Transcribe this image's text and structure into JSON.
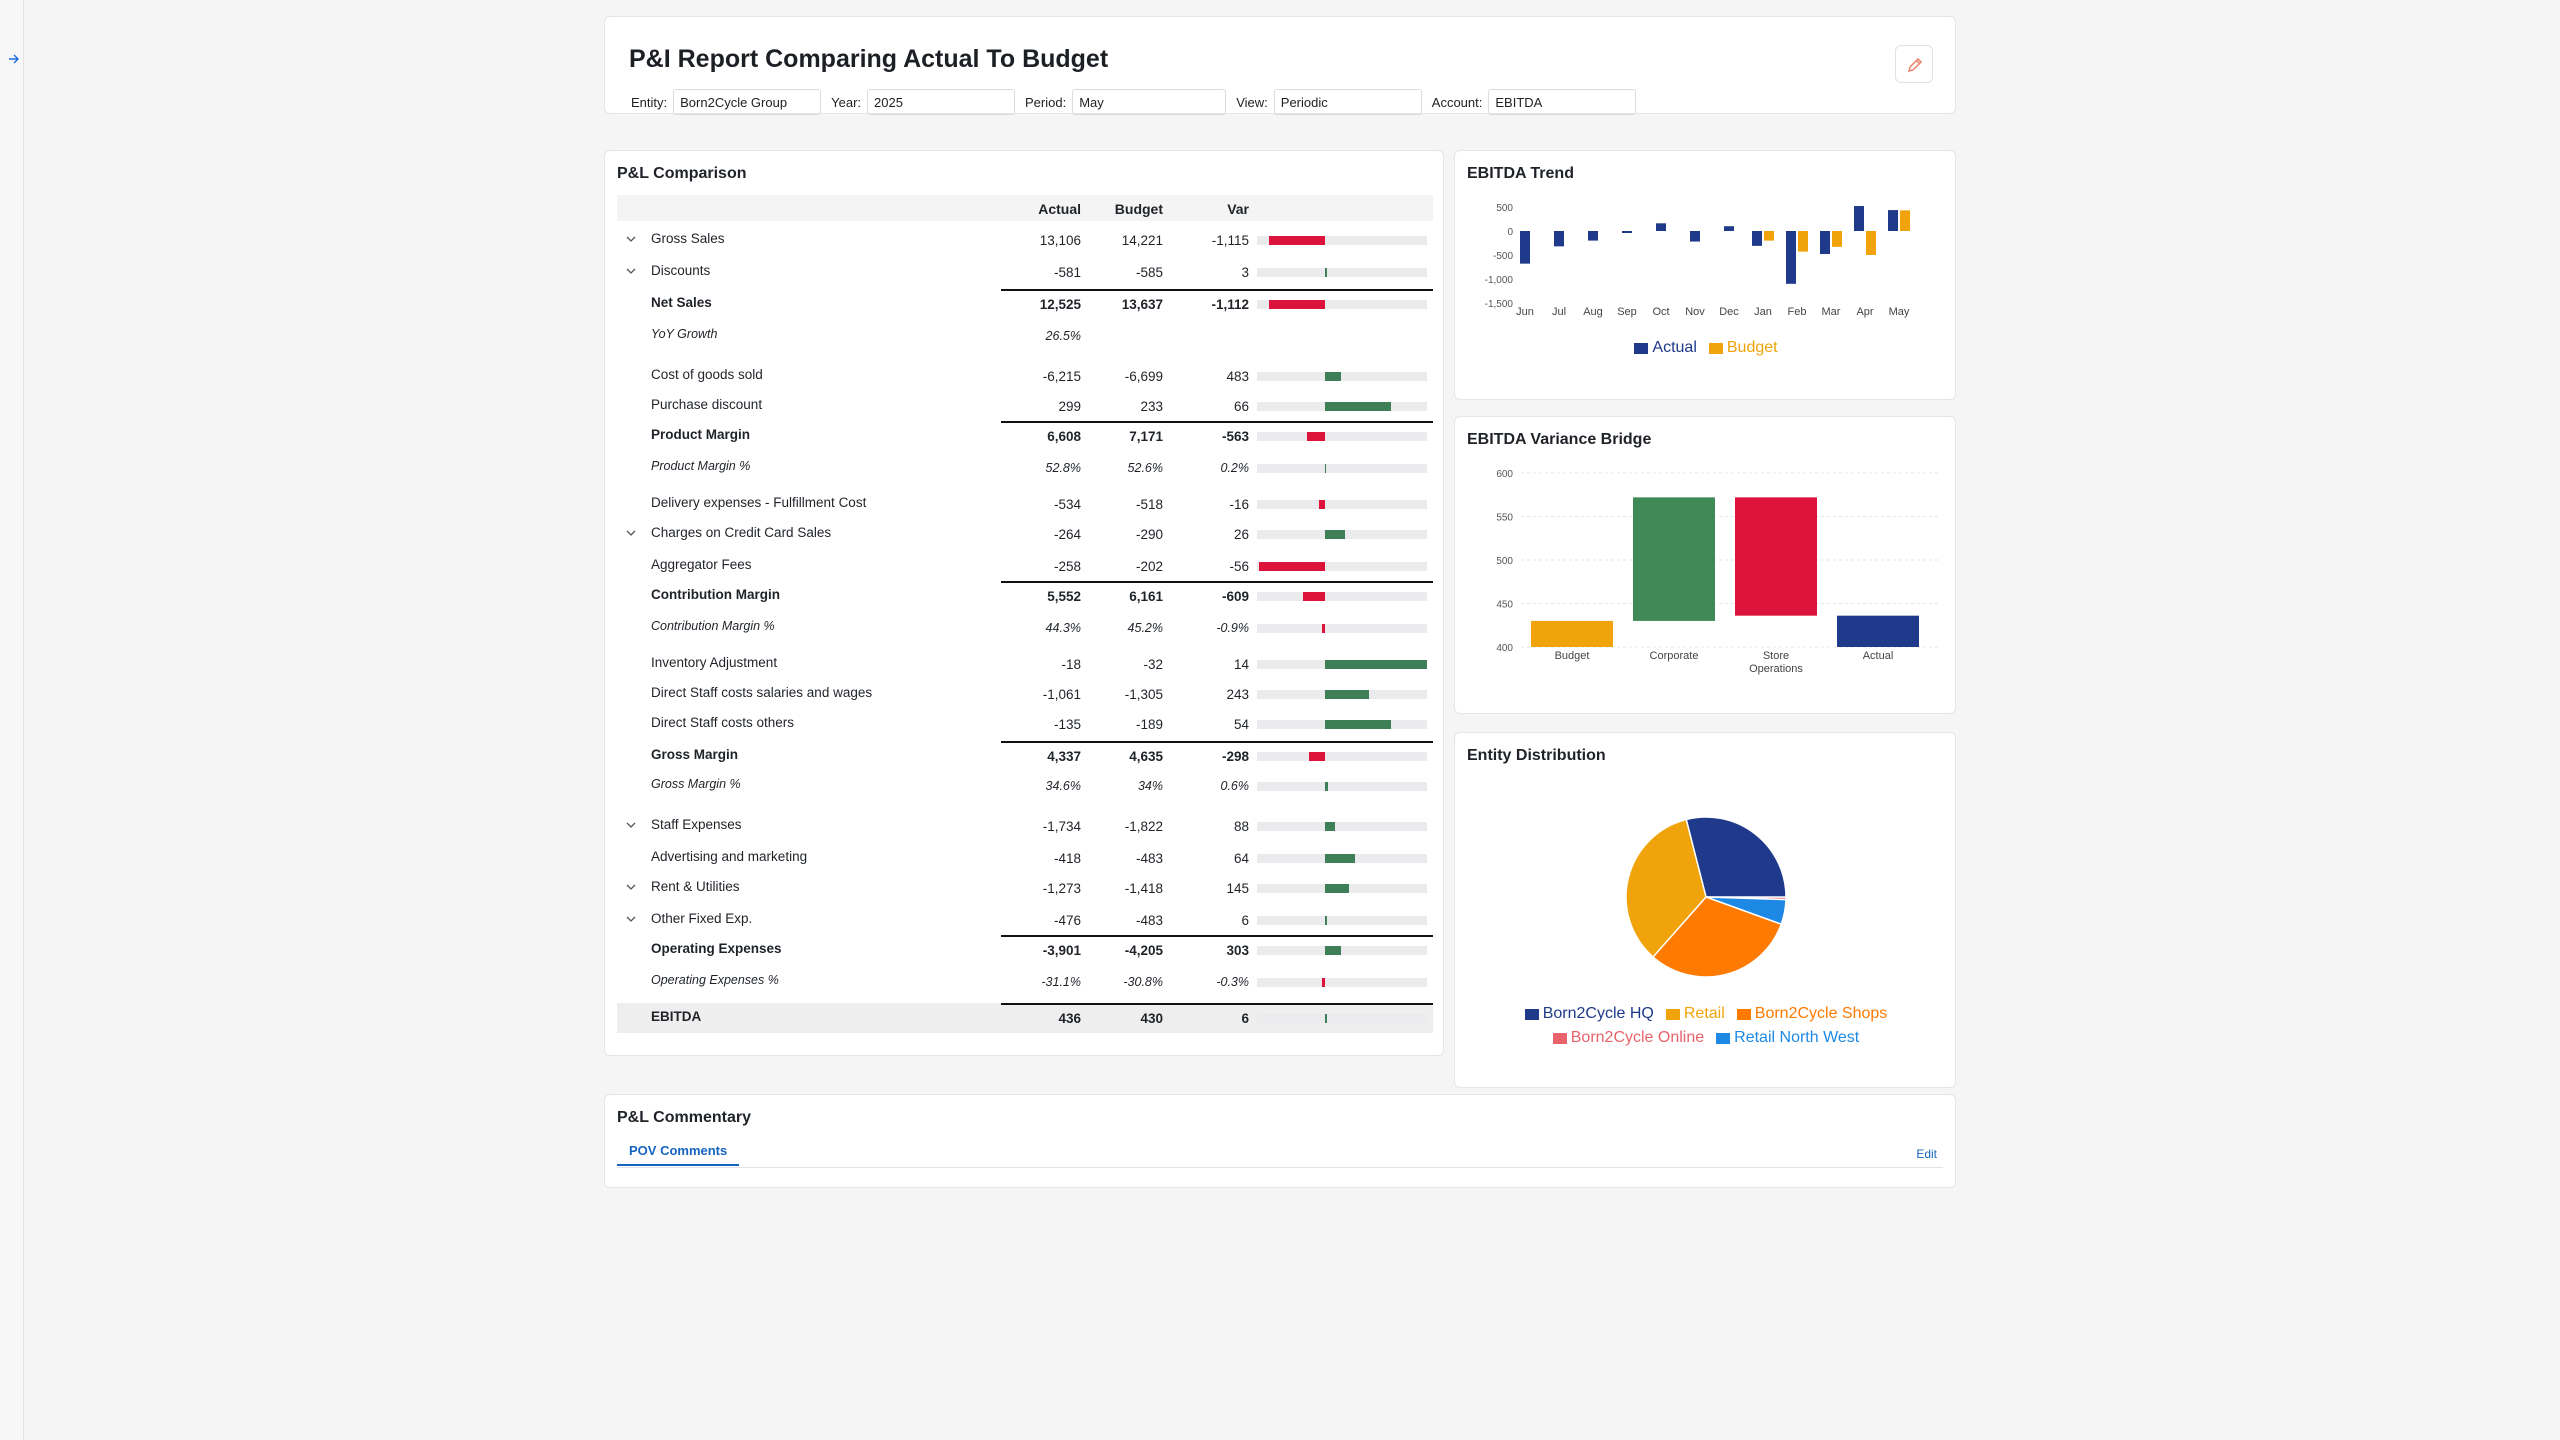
{
  "header": {
    "title": "P&I Report Comparing Actual To Budget",
    "filters": [
      {
        "label": "Entity:",
        "value": "Born2Cycle Group"
      },
      {
        "label": "Year:",
        "value": "2025"
      },
      {
        "label": "Period:",
        "value": "May"
      },
      {
        "label": "View:",
        "value": "Periodic"
      },
      {
        "label": "Account:",
        "value": "EBITDA"
      }
    ]
  },
  "pl": {
    "title": "P&L Comparison",
    "columns": {
      "actual": "Actual",
      "budget": "Budget",
      "var": "Var"
    },
    "rows": [
      {
        "name": "Gross Sales",
        "actual": "13,106",
        "budget": "14,221",
        "var": "-1,115",
        "v": -1115,
        "style": "normal",
        "chev": true
      },
      {
        "name": "Discounts",
        "actual": "-581",
        "budget": "-585",
        "var": "3",
        "v": 3,
        "style": "normal",
        "chev": true
      },
      {
        "name": "Net Sales",
        "actual": "12,525",
        "budget": "13,637",
        "var": "-1,112",
        "v": -1112,
        "style": "bold",
        "topline": true
      },
      {
        "name": "YoY Growth",
        "actual": "26.5%",
        "budget": "",
        "var": "",
        "v": null,
        "style": "italic"
      },
      {
        "name": "Cost of goods sold",
        "actual": "-6,215",
        "budget": "-6,699",
        "var": "483",
        "v": 483,
        "style": "normal"
      },
      {
        "name": "Purchase discount",
        "actual": "299",
        "budget": "233",
        "var": "66",
        "v": 66,
        "style": "normal",
        "scale": 400
      },
      {
        "name": "Product Margin",
        "actual": "6,608",
        "budget": "7,171",
        "var": "-563",
        "v": -563,
        "style": "bold",
        "topline": true
      },
      {
        "name": "Product Margin %",
        "actual": "52.8%",
        "budget": "52.6%",
        "var": "0.2%",
        "v": 0,
        "style": "italic"
      },
      {
        "name": "Delivery expenses - Fulfillment Cost",
        "actual": "-534",
        "budget": "-518",
        "var": "-16",
        "v": -16,
        "style": "normal"
      },
      {
        "name": "Charges on Credit Card Sales",
        "actual": "-264",
        "budget": "-290",
        "var": "26",
        "v": 26,
        "style": "normal",
        "chev": true
      },
      {
        "name": "Aggregator Fees",
        "actual": "-258",
        "budget": "-202",
        "var": "-56",
        "v": -56,
        "style": "normal"
      },
      {
        "name": "Contribution Margin",
        "actual": "5,552",
        "budget": "6,161",
        "var": "-609",
        "v": -609,
        "style": "bold",
        "topline": true
      },
      {
        "name": "Contribution Margin %",
        "actual": "44.3%",
        "budget": "45.2%",
        "var": "-0.9%",
        "v": -1,
        "style": "italic"
      },
      {
        "name": "Inventory Adjustment",
        "actual": "-18",
        "budget": "-32",
        "var": "14",
        "v": 14,
        "style": "normal"
      },
      {
        "name": "Direct Staff costs salaries and wages",
        "actual": "-1,061",
        "budget": "-1,305",
        "var": "243",
        "v": 243,
        "style": "normal"
      },
      {
        "name": "Direct Staff costs others",
        "actual": "-135",
        "budget": "-189",
        "var": "54",
        "v": 54,
        "style": "normal"
      },
      {
        "name": "Gross Margin",
        "actual": "4,337",
        "budget": "4,635",
        "var": "-298",
        "v": -298,
        "style": "bold",
        "topline": true
      },
      {
        "name": "Gross Margin %",
        "actual": "34.6%",
        "budget": "34%",
        "var": "0.6%",
        "v": 1,
        "style": "italic"
      },
      {
        "name": "Staff Expenses",
        "actual": "-1,734",
        "budget": "-1,822",
        "var": "88",
        "v": 88,
        "style": "normal",
        "chev": true
      },
      {
        "name": "Advertising and marketing",
        "actual": "-418",
        "budget": "-483",
        "var": "64",
        "v": 64,
        "style": "normal"
      },
      {
        "name": "Rent & Utilities",
        "actual": "-1,273",
        "budget": "-1,418",
        "var": "145",
        "v": 145,
        "style": "normal",
        "chev": true
      },
      {
        "name": "Other Fixed Exp.",
        "actual": "-476",
        "budget": "-483",
        "var": "6",
        "v": 6,
        "style": "normal",
        "chev": true
      },
      {
        "name": "Operating Expenses",
        "actual": "-3,901",
        "budget": "-4,205",
        "var": "303",
        "v": 303,
        "style": "bold",
        "topline": true
      },
      {
        "name": "Operating Expenses %",
        "actual": "-31.1%",
        "budget": "-30.8%",
        "var": "-0.3%",
        "v": -1,
        "style": "italic"
      },
      {
        "name": "EBITDA",
        "actual": "436",
        "budget": "430",
        "var": "6",
        "v": 6,
        "style": "total",
        "topline": true
      }
    ]
  },
  "charts": {
    "trend_title": "EBITDA Trend",
    "bridge_title": "EBITDA Variance Bridge",
    "dist_title": "Entity Distribution"
  },
  "colors": {
    "actual": "#1f3a8a",
    "budget": "#f0a30a",
    "positive": "#3f7f57",
    "negative": "#dc143c",
    "bridge_positive": "#3f8a57"
  },
  "chart_data": [
    {
      "type": "bar",
      "title": "EBITDA Trend",
      "categories": [
        "Jun",
        "Jul",
        "Aug",
        "Sep",
        "Oct",
        "Nov",
        "Dec",
        "Jan",
        "Feb",
        "Mar",
        "Apr",
        "May"
      ],
      "series": [
        {
          "name": "Actual",
          "values": [
            -680,
            -320,
            -200,
            -40,
            160,
            -220,
            100,
            -310,
            -1100,
            -480,
            520,
            436
          ]
        },
        {
          "name": "Budget",
          "values": [
            null,
            null,
            null,
            null,
            null,
            null,
            null,
            -200,
            -430,
            -330,
            -500,
            430
          ]
        }
      ],
      "yticks": [
        "500",
        "0",
        "-500",
        "-1,000",
        "-1,500"
      ],
      "ylim": [
        -1500,
        500
      ],
      "legend": "bottom"
    },
    {
      "type": "bar",
      "title": "EBITDA Variance Bridge",
      "categories": [
        "Budget",
        "Corporate",
        "Store Operations",
        "Actual"
      ],
      "bars": [
        {
          "label": "Budget",
          "start": 400,
          "end": 430
        },
        {
          "label": "Corporate",
          "start": 430,
          "end": 572
        },
        {
          "label": "Store Operations",
          "start": 572,
          "end": 436
        },
        {
          "label": "Actual",
          "start": 400,
          "end": 436
        }
      ],
      "yticks": [
        "600",
        "550",
        "500",
        "450",
        "400"
      ],
      "ylim": [
        400,
        600
      ]
    },
    {
      "type": "pie",
      "title": "Entity Distribution",
      "slices": [
        {
          "name": "Born2Cycle HQ",
          "value": 29,
          "color": "#1f3a8a"
        },
        {
          "name": "Born2Cycle Online",
          "value": 0.5,
          "color": "#e8636c"
        },
        {
          "name": "Retail North West",
          "value": 5,
          "color": "#1e88e5"
        },
        {
          "name": "Born2Cycle Shops",
          "value": 31,
          "color": "#ff7a00"
        },
        {
          "name": "Retail",
          "value": 34.5,
          "color": "#f0a30a"
        }
      ],
      "legend": "bottom"
    }
  ],
  "legends": {
    "trend": [
      {
        "name": "Actual",
        "color": "#1f3a8a"
      },
      {
        "name": "Budget",
        "color": "#f0a30a"
      }
    ],
    "dist_row1": [
      {
        "name": "Born2Cycle HQ",
        "color": "#1f3a8a"
      },
      {
        "name": "Retail",
        "color": "#f0a30a"
      },
      {
        "name": "Born2Cycle Shops",
        "color": "#ff7a00"
      }
    ],
    "dist_row2": [
      {
        "name": "Born2Cycle Online",
        "color": "#e8636c"
      },
      {
        "name": "Retail North West",
        "color": "#1e88e5"
      }
    ]
  },
  "commentary": {
    "title": "P&L Commentary",
    "tab": "POV Comments",
    "edit": "Edit"
  }
}
